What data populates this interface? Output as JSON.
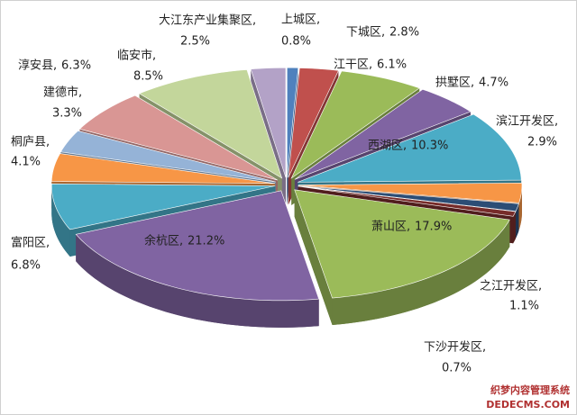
{
  "chart_data": {
    "type": "pie3d",
    "categories": [
      "上城区",
      "下城区",
      "江干区",
      "拱墅区",
      "西湖区",
      "滨江开发区",
      "之江开发区",
      "下沙开发区",
      "萧山区",
      "余杭区",
      "富阳区",
      "桐庐县",
      "建德市",
      "淳安县",
      "临安市",
      "大江东产业集聚区"
    ],
    "values": [
      0.8,
      2.8,
      6.1,
      4.7,
      10.3,
      2.9,
      1.1,
      0.7,
      17.9,
      21.2,
      6.8,
      4.1,
      3.3,
      6.3,
      8.5,
      2.5
    ],
    "value_labels": [
      "0.8%",
      "2.8%",
      "6.1%",
      "4.7%",
      "10.3%",
      "2.9%",
      "1.1%",
      "0.7%",
      "17.9%",
      "21.2%",
      "6.8%",
      "4.1%",
      "3.3%",
      "6.3%",
      "8.5%",
      "2.5%"
    ],
    "colors": [
      "#4f81bd",
      "#c0504d",
      "#9bbb59",
      "#8064a2",
      "#4bacc6",
      "#f79646",
      "#2c4d75",
      "#772c2a",
      "#9bbb59",
      "#8064a2",
      "#4bacc6",
      "#f79646",
      "#95b3d7",
      "#d99694",
      "#c3d69b",
      "#b3a2c7"
    ]
  },
  "watermark": [
    "织梦内容管理系统",
    "DEDECMS.COM"
  ]
}
